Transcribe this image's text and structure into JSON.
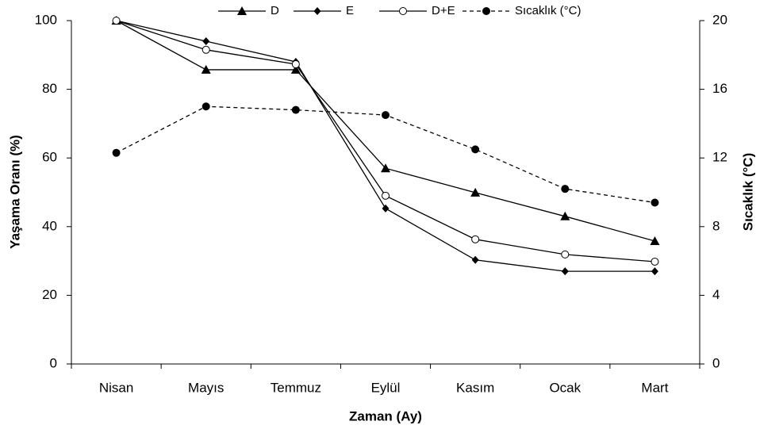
{
  "chart_data": {
    "type": "line",
    "xlabel": "Zaman (Ay)",
    "ylabel": "Yaşama Oranı (%)",
    "y2label": "Sıcaklık (°C)",
    "categories": [
      "Nisan",
      "Mayıs",
      "Temmuz",
      "Eylül",
      "Kasım",
      "Ocak",
      "Mart"
    ],
    "ylim": [
      0,
      100
    ],
    "yticks": [
      0,
      20,
      40,
      60,
      80,
      100
    ],
    "y2lim": [
      0,
      20
    ],
    "y2ticks": [
      0,
      4,
      8,
      12,
      16,
      20
    ],
    "legend": "top",
    "series": [
      {
        "name": "D",
        "color": "#000000",
        "marker": "triangle",
        "line": "solid",
        "values": [
          100,
          85.7,
          85.7,
          57.0,
          49.9,
          43.0,
          35.8
        ]
      },
      {
        "name": "E",
        "color": "#000000",
        "marker": "diamond",
        "line": "solid",
        "values": [
          100,
          94.0,
          88.0,
          45.3,
          30.3,
          27.0,
          27.0
        ]
      },
      {
        "name": "D+E",
        "color": "#000000",
        "marker": "open-circle",
        "line": "solid",
        "values": [
          100,
          91.5,
          87.3,
          49.0,
          36.3,
          31.9,
          29.8
        ]
      },
      {
        "name": "Sıcaklık (°C)",
        "color": "#000000",
        "marker": "circle",
        "line": "dashed",
        "axis": "y2",
        "values": [
          12.3,
          15.0,
          14.8,
          14.5,
          12.5,
          10.2,
          9.4
        ]
      }
    ]
  }
}
